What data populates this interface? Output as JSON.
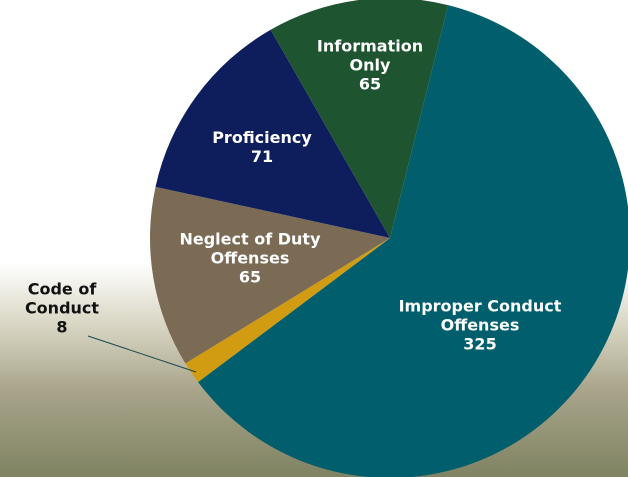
{
  "chart_data": {
    "type": "pie",
    "categories": [
      "Improper Conduct Offenses",
      "Code of Conduct",
      "Neglect of Duty Offenses",
      "Proficiency",
      "Information Only"
    ],
    "values": [
      325,
      8,
      65,
      71,
      65
    ],
    "colors": [
      "#005e6d",
      "#d19b12",
      "#7b6b55",
      "#0e1d5c",
      "#1f5431"
    ]
  }
}
